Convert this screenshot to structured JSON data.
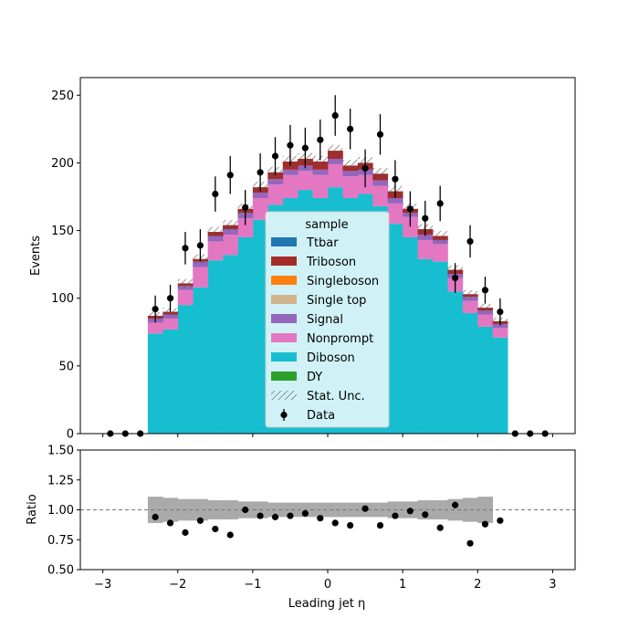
{
  "chart_data": [
    {
      "type": "bar",
      "stacked": true,
      "xlabel": "Leading jet  η",
      "ylabel": "Events",
      "xlim": [
        -3.3,
        3.3
      ],
      "ylim": [
        0,
        263
      ],
      "xticks": [
        -3,
        -2,
        -1,
        0,
        1,
        2,
        3
      ],
      "yticks": [
        0,
        50,
        100,
        150,
        200,
        250
      ],
      "x_bin_edges": [
        -2.4,
        -2.2,
        -2.0,
        -1.8,
        -1.6,
        -1.4,
        -1.2,
        -1.0,
        -0.8,
        -0.6,
        -0.4,
        -0.2,
        0.0,
        0.2,
        0.4,
        0.6,
        0.8,
        1.0,
        1.2,
        1.4,
        1.6,
        1.8,
        2.0,
        2.2,
        2.4
      ],
      "stack_order": [
        "Diboson",
        "Nonprompt",
        "Signal",
        "Triboson"
      ],
      "series": [
        {
          "name": "Diboson",
          "color": "#17becf",
          "values": [
            74,
            77,
            95,
            108,
            128,
            132,
            145,
            158,
            169,
            174,
            180,
            174,
            182,
            174,
            177,
            168,
            155,
            145,
            129,
            127,
            105,
            89,
            79,
            71
          ]
        },
        {
          "name": "Nonprompt",
          "color": "#e377c2",
          "values": [
            8,
            8,
            11,
            15,
            14,
            15,
            14,
            16,
            15,
            17,
            14,
            17,
            17,
            16,
            14,
            15,
            15,
            15,
            14,
            13,
            10,
            9,
            9,
            7
          ]
        },
        {
          "name": "Signal",
          "color": "#9467bd",
          "values": [
            3,
            3,
            3,
            4,
            4,
            4,
            4,
            4,
            4,
            4,
            4,
            4,
            4,
            4,
            4,
            4,
            4,
            3,
            4,
            3,
            3,
            3,
            3,
            3
          ]
        },
        {
          "name": "Triboson",
          "color": "#a52a2a",
          "values": [
            2,
            2,
            2,
            2,
            3,
            3,
            3,
            4,
            5,
            6,
            5,
            6,
            6,
            4,
            5,
            5,
            5,
            3,
            4,
            3,
            3,
            2,
            2,
            2
          ]
        }
      ],
      "data_points": {
        "name": "Data",
        "x": [
          -2.9,
          -2.7,
          -2.5,
          -2.3,
          -2.1,
          -1.9,
          -1.7,
          -1.5,
          -1.3,
          -1.1,
          -0.9,
          -0.7,
          -0.5,
          -0.3,
          -0.1,
          0.1,
          0.3,
          0.5,
          0.7,
          0.9,
          1.1,
          1.3,
          1.5,
          1.7,
          1.9,
          2.1,
          2.3,
          2.5,
          2.7,
          2.9
        ],
        "y": [
          0,
          0,
          0,
          92,
          100,
          137,
          139,
          177,
          191,
          167,
          193,
          205,
          213,
          211,
          217,
          235,
          225,
          196,
          221,
          188,
          166,
          159,
          170,
          115,
          142,
          106,
          90,
          0,
          0,
          0
        ],
        "err": [
          0,
          0,
          0,
          10,
          10,
          12,
          12,
          13,
          14,
          13,
          14,
          14,
          15,
          15,
          15,
          15,
          15,
          14,
          15,
          14,
          13,
          13,
          13,
          11,
          12,
          10,
          10,
          0,
          0,
          0
        ]
      },
      "legend": {
        "title": "sample",
        "placement": "lower center",
        "entries": [
          {
            "label": "Ttbar",
            "color": "#1f77b4",
            "kind": "patch"
          },
          {
            "label": "Triboson",
            "color": "#a52a2a",
            "kind": "patch"
          },
          {
            "label": "Singleboson",
            "color": "#ff7f0e",
            "kind": "patch"
          },
          {
            "label": "Single top",
            "color": "#d2b48c",
            "kind": "patch"
          },
          {
            "label": "Signal",
            "color": "#9467bd",
            "kind": "patch"
          },
          {
            "label": "Nonprompt",
            "color": "#e377c2",
            "kind": "patch"
          },
          {
            "label": "Diboson",
            "color": "#17becf",
            "kind": "patch"
          },
          {
            "label": "DY",
            "color": "#2ca02c",
            "kind": "patch"
          },
          {
            "label": "Stat. Unc.",
            "color": "#555555",
            "kind": "hatch"
          },
          {
            "label": "Data",
            "color": "#000000",
            "kind": "errorbar"
          }
        ]
      },
      "grid": false
    },
    {
      "type": "scatter",
      "xlabel": "Leading jet  η",
      "ylabel": "Ratio",
      "xlim": [
        -3.3,
        3.3
      ],
      "ylim": [
        0.5,
        1.5
      ],
      "xticks": [
        -3,
        -2,
        -1,
        0,
        1,
        2,
        3
      ],
      "yticks": [
        0.5,
        0.75,
        1.0,
        1.25,
        1.5
      ],
      "ytick_labels": [
        "0.50",
        "0.75",
        "1.00",
        "1.25",
        "1.50"
      ],
      "reference_line": 1.0,
      "uncertainty_band": {
        "color": "#aaaaaa",
        "x_bin_edges": [
          -2.4,
          -2.2,
          -2.0,
          -1.8,
          -1.6,
          -1.4,
          -1.2,
          -1.0,
          -0.8,
          -0.6,
          -0.4,
          -0.2,
          0.0,
          0.2,
          0.4,
          0.6,
          0.8,
          1.0,
          1.2,
          1.4,
          1.6,
          1.8,
          2.0,
          2.2
        ],
        "low": [
          0.89,
          0.9,
          0.91,
          0.91,
          0.92,
          0.92,
          0.93,
          0.93,
          0.94,
          0.94,
          0.94,
          0.94,
          0.94,
          0.94,
          0.94,
          0.94,
          0.93,
          0.93,
          0.92,
          0.92,
          0.91,
          0.9,
          0.89
        ],
        "high": [
          1.11,
          1.1,
          1.09,
          1.09,
          1.08,
          1.08,
          1.07,
          1.07,
          1.06,
          1.06,
          1.06,
          1.06,
          1.06,
          1.06,
          1.06,
          1.06,
          1.07,
          1.07,
          1.08,
          1.08,
          1.09,
          1.1,
          1.11
        ]
      },
      "points": {
        "x": [
          -2.3,
          -2.1,
          -1.9,
          -1.7,
          -1.5,
          -1.3,
          -1.1,
          -0.9,
          -0.7,
          -0.5,
          -0.3,
          -0.1,
          0.1,
          0.3,
          0.5,
          0.7,
          0.9,
          1.1,
          1.3,
          1.5,
          1.7,
          1.9,
          2.1,
          2.3
        ],
        "y": [
          0.94,
          0.89,
          0.81,
          0.91,
          0.84,
          0.79,
          1.0,
          0.95,
          0.94,
          0.95,
          0.97,
          0.93,
          0.89,
          0.87,
          1.01,
          0.87,
          0.95,
          0.99,
          0.96,
          0.85,
          1.04,
          0.72,
          0.88,
          0.91
        ]
      },
      "grid": false
    }
  ]
}
